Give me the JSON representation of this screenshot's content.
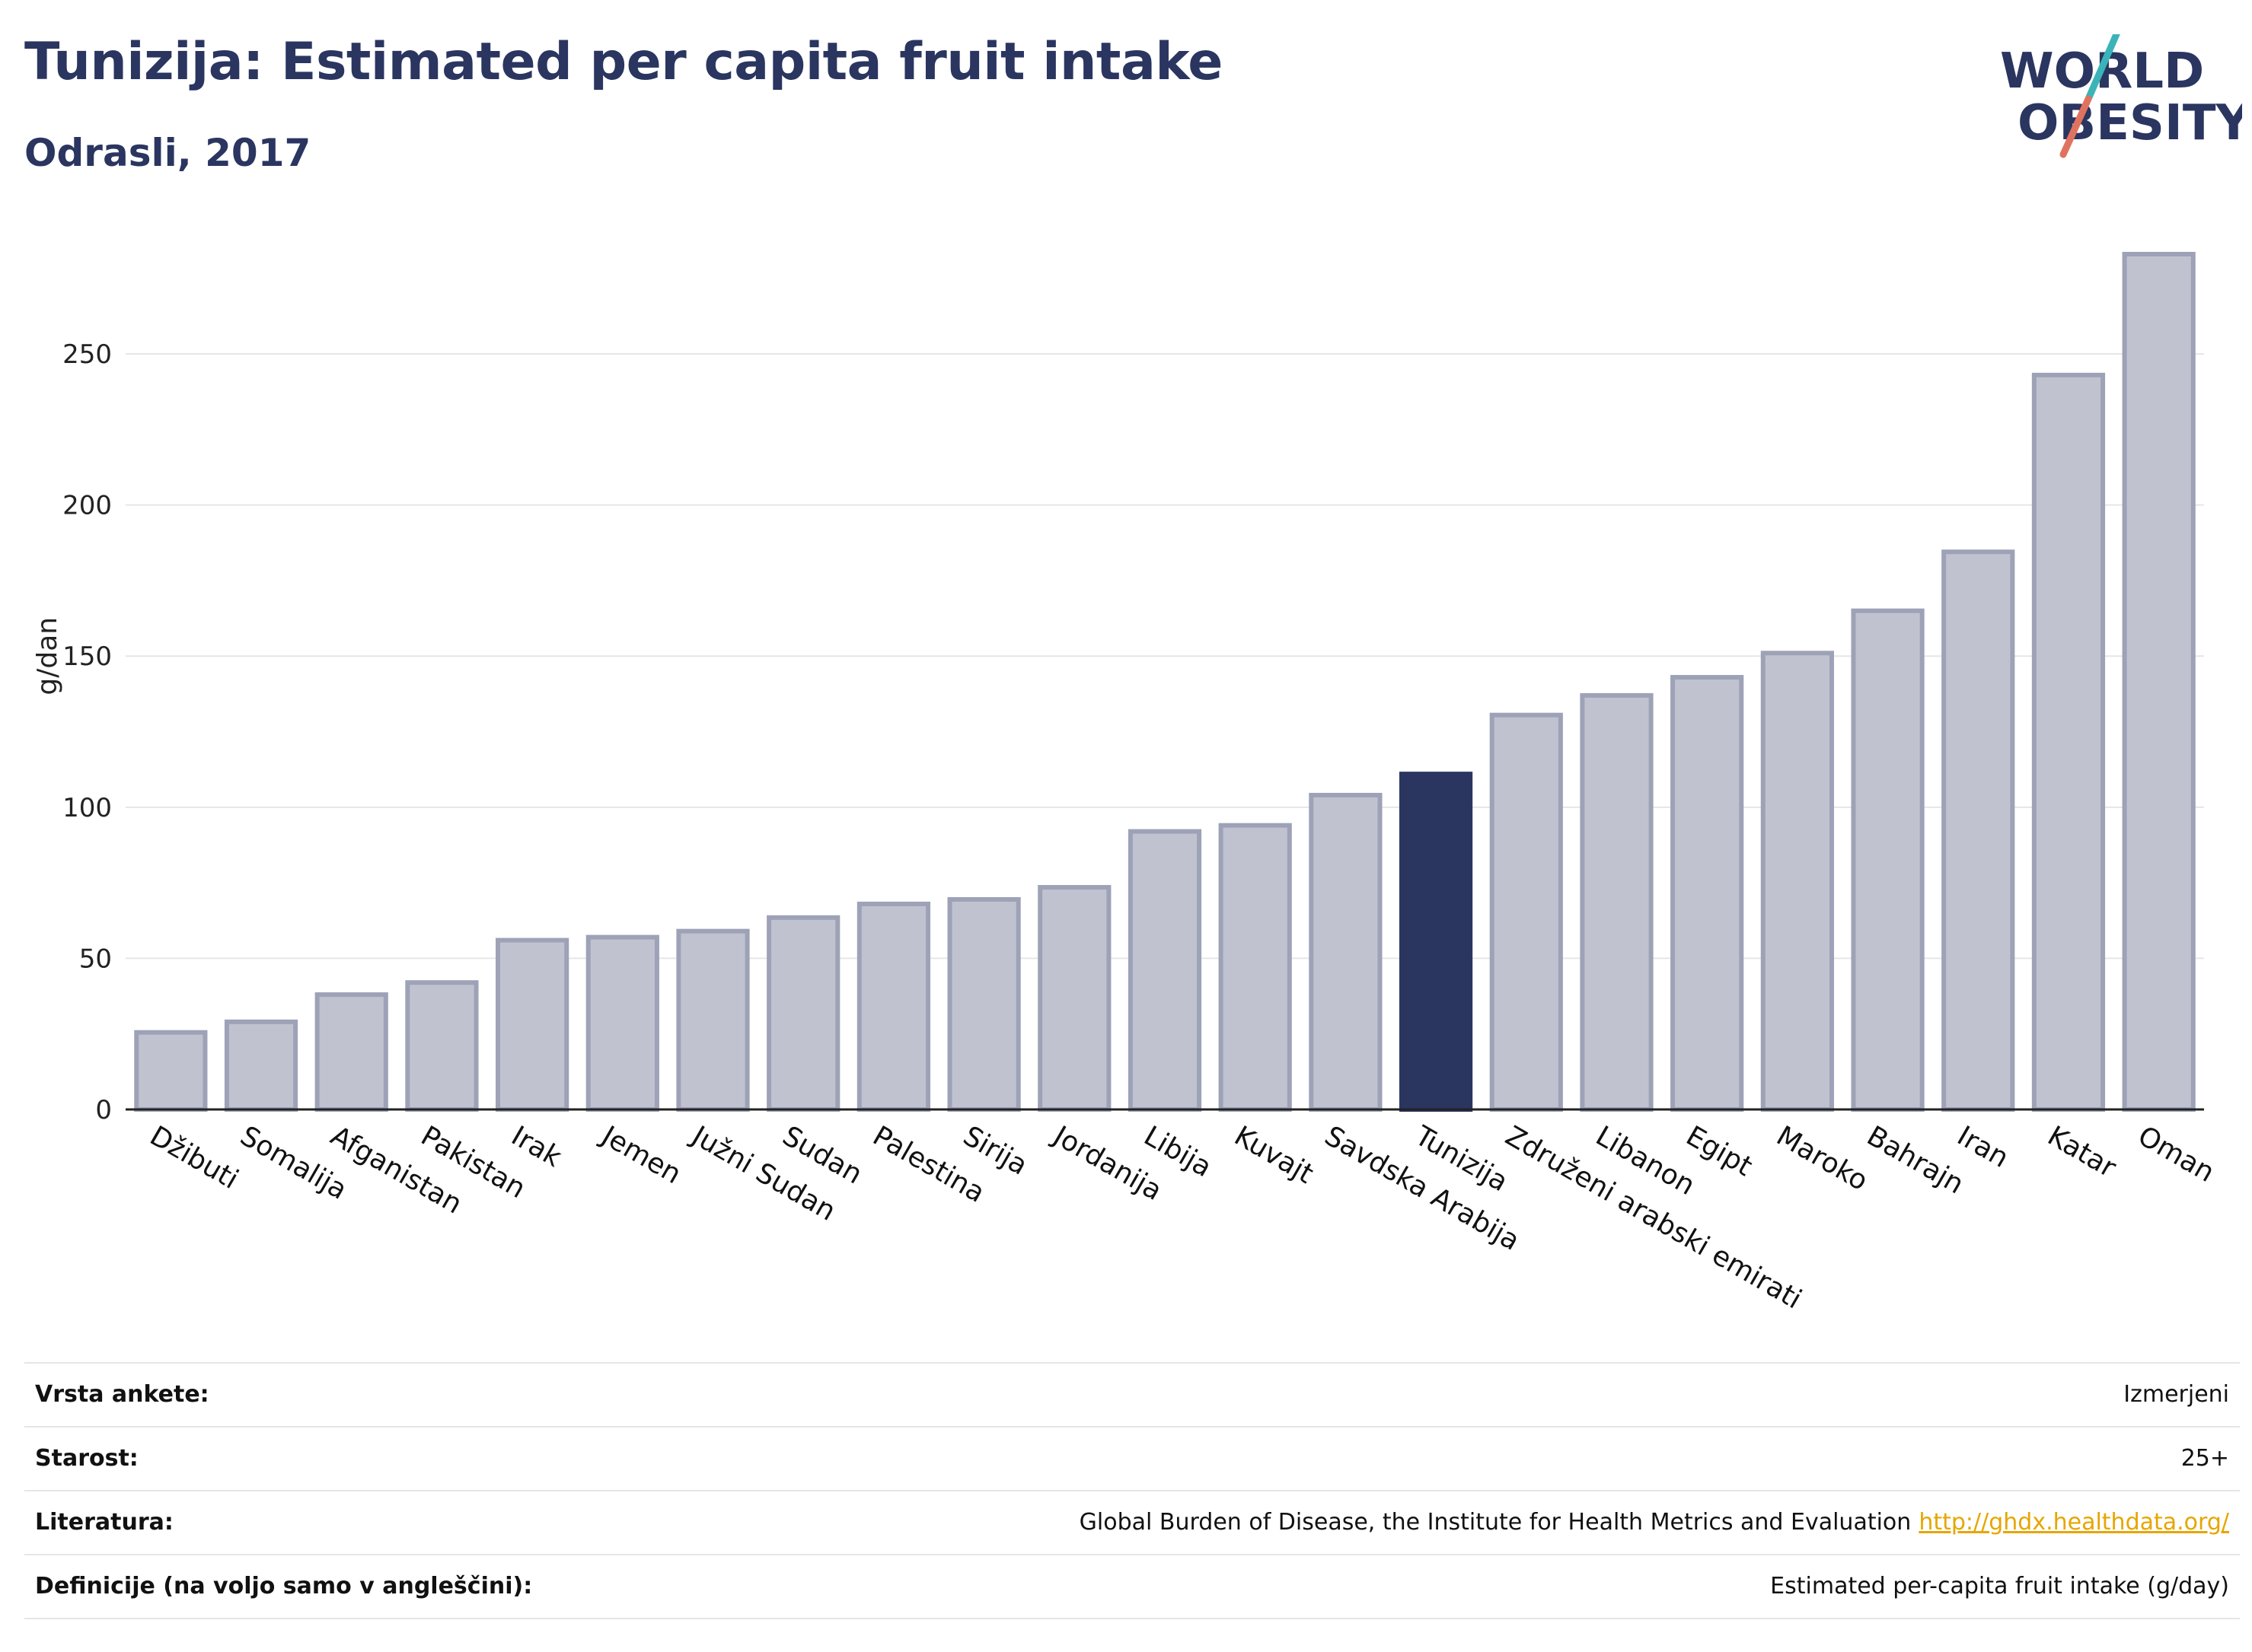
{
  "header": {
    "title": "Tunizija: Estimated per capita fruit intake",
    "subtitle": "Odrasli, 2017"
  },
  "logo": {
    "line1": "WORLD",
    "line2": "OBESITY",
    "accent_teal": "#3bb4b9",
    "accent_coral": "#e0735f",
    "brand_color": "#2a3560"
  },
  "chart_data": {
    "type": "bar",
    "ylabel": "g/dan",
    "xlabel": "",
    "ylim": [
      0,
      290
    ],
    "yticks": [
      0,
      50,
      100,
      150,
      200,
      250
    ],
    "grid": true,
    "highlight": "Tunizija",
    "colors": {
      "bar": "#c0c3cf",
      "bar_border": "#9da2b7",
      "highlight": "#2a3560"
    },
    "categories": [
      "Džibuti",
      "Somalija",
      "Afganistan",
      "Pakistan",
      "Irak",
      "Jemen",
      "Južni Sudan",
      "Sudan",
      "Palestina",
      "Sirija",
      "Jordanija",
      "Libija",
      "Kuvajt",
      "Savdska Arabija",
      "Tunizija",
      "Združeni arabski emirati",
      "Libanon",
      "Egipt",
      "Maroko",
      "Bahrajn",
      "Iran",
      "Katar",
      "Oman"
    ],
    "values": [
      25.5,
      29,
      38,
      42,
      56,
      57,
      59,
      63.5,
      68,
      69.5,
      73.5,
      92,
      94,
      104,
      111,
      130.5,
      137,
      143,
      151,
      165,
      184.5,
      243,
      283
    ]
  },
  "meta": [
    {
      "label": "Vrsta ankete:",
      "value": "Izmerjeni"
    },
    {
      "label": "Starost:",
      "value": "25+"
    },
    {
      "label": "Literatura:",
      "value": "Global Burden of Disease, the Institute for Health Metrics and Evaluation",
      "link": "http://ghdx.healthdata.org/"
    },
    {
      "label": "Definicije (na voljo samo v angleščini):",
      "value": "Estimated per-capita fruit intake (g/day)"
    }
  ]
}
